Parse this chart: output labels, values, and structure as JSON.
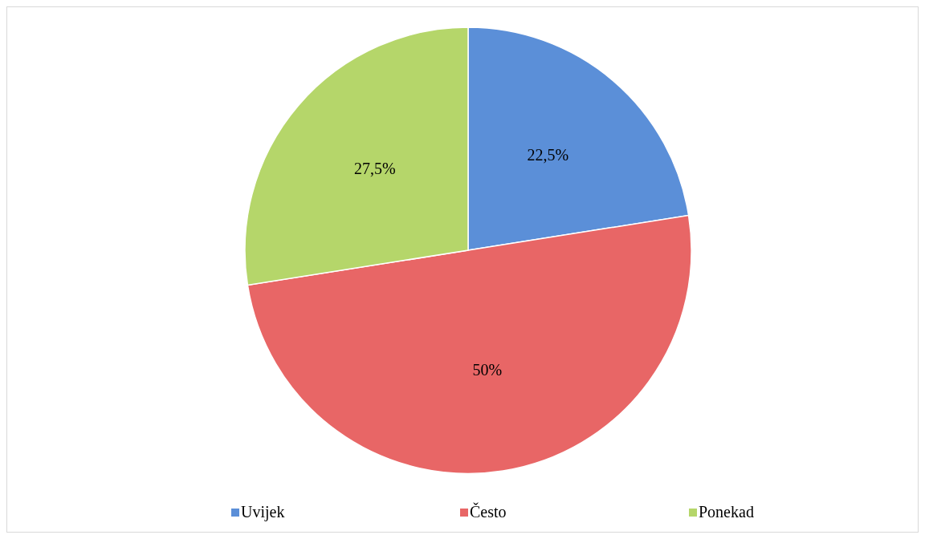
{
  "chart_data": {
    "type": "pie",
    "categories": [
      "Uvijek",
      "Često",
      "Ponekad"
    ],
    "values": [
      22.5,
      50,
      27.5
    ],
    "colors": [
      "#5b8fd8",
      "#e86666",
      "#b5d66a"
    ],
    "value_labels": [
      "22,5%",
      "50%",
      "27,5%"
    ],
    "legend": "bottom"
  }
}
